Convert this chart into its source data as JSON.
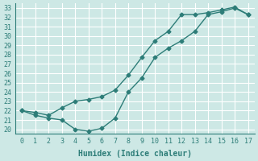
{
  "background_color": "#cde8e5",
  "line_color": "#2d7d78",
  "grid_color": "#ffffff",
  "xlabel": "Humidex (Indice chaleur)",
  "xlim": [
    -0.5,
    17.5
  ],
  "ylim": [
    19.5,
    33.5
  ],
  "xticks": [
    0,
    1,
    2,
    3,
    4,
    5,
    6,
    7,
    8,
    9,
    10,
    11,
    12,
    13,
    14,
    15,
    16,
    17
  ],
  "yticks": [
    20,
    21,
    22,
    23,
    24,
    25,
    26,
    27,
    28,
    29,
    30,
    31,
    32,
    33
  ],
  "curve1_x": [
    0,
    1,
    2,
    3,
    4,
    5,
    6,
    7,
    8,
    9,
    10,
    11,
    12,
    13,
    14,
    15,
    16,
    17
  ],
  "curve1_y": [
    22.0,
    21.5,
    21.2,
    21.0,
    20.0,
    19.8,
    20.1,
    21.2,
    24.0,
    25.5,
    27.7,
    28.7,
    29.5,
    30.5,
    32.3,
    32.6,
    33.0,
    32.3
  ],
  "curve2_x": [
    0,
    1,
    2,
    3,
    4,
    5,
    6,
    7,
    8,
    9,
    10,
    11,
    12,
    13,
    14,
    15,
    16,
    17
  ],
  "curve2_y": [
    22.0,
    21.8,
    21.5,
    22.3,
    23.0,
    23.2,
    23.5,
    24.2,
    25.8,
    27.7,
    29.5,
    30.5,
    32.3,
    32.3,
    32.5,
    32.8,
    33.1,
    32.3
  ],
  "marker_style": "D",
  "marker_size": 2.5,
  "line_width": 1.0,
  "xlabel_fontsize": 7,
  "tick_fontsize": 6
}
